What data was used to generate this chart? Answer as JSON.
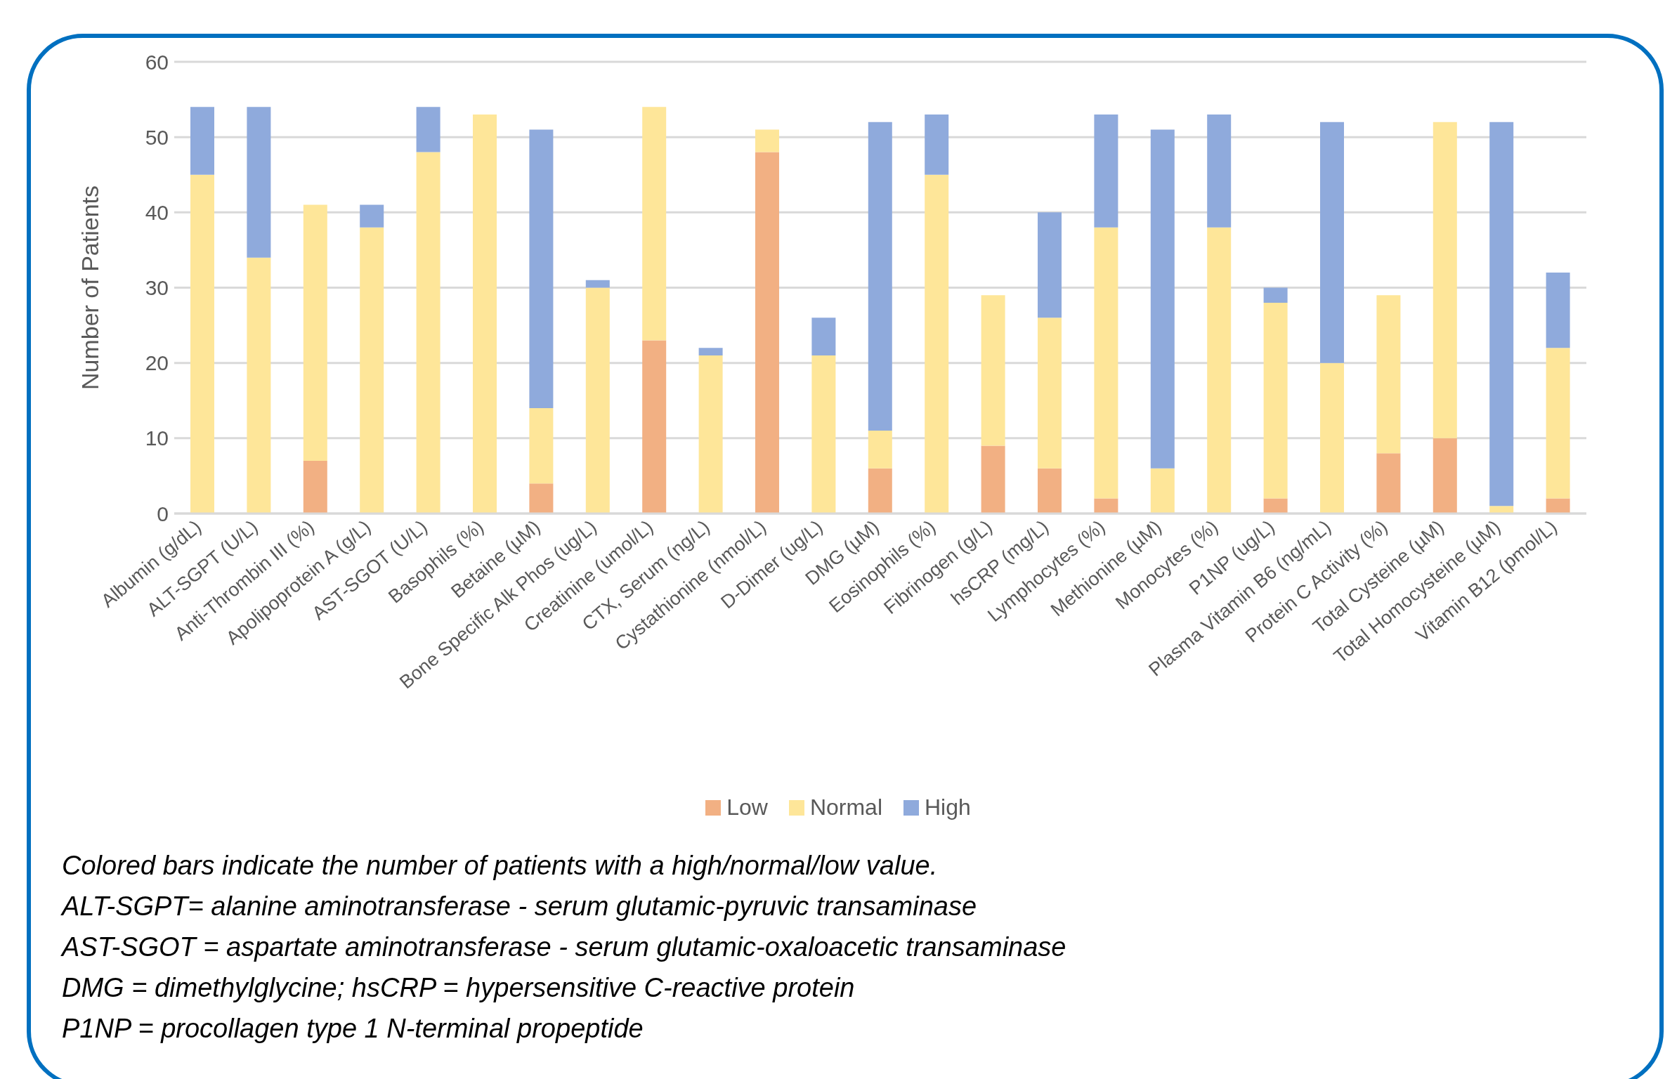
{
  "chart_data": {
    "type": "bar",
    "stacked": true,
    "ylabel": "Number of Patients",
    "ylim": [
      0,
      60
    ],
    "yticks": [
      0,
      10,
      20,
      30,
      40,
      50,
      60
    ],
    "grid": "y",
    "legend": "bottom",
    "categories": [
      "Albumin (g/dL)",
      "ALT-SGPT (U/L)",
      "Anti-Thrombin III (%)",
      "Apolipoprotein A (g/L)",
      "AST-SGOT (U/L)",
      "Basophils (%)",
      "Betaine (µM)",
      "Bone Specific Alk Phos (ug/L)",
      "Creatinine (umol/L)",
      "CTX, Serum (ng/L)",
      "Cystathionine (nmol/L)",
      "D-Dimer (ug/L)",
      "DMG (µM)",
      "Eosinophils (%)",
      "Fibrinogen (g/L)",
      "hsCRP (mg/L)",
      "Lymphocytes (%)",
      "Methionine (µM)",
      "Monocytes (%)",
      "P1NP (ug/L)",
      "Plasma Vitamin B6 (ng/mL)",
      "Protein C Activity (%)",
      "Total Cysteine (µM)",
      "Total Homocysteine (µM)",
      "Vitamin B12 (pmol/L)"
    ],
    "series": [
      {
        "name": "Low",
        "color": "#f2b083",
        "values": [
          0,
          0,
          7,
          0,
          0,
          0,
          4,
          0,
          23,
          0,
          48,
          0,
          6,
          0,
          9,
          6,
          2,
          0,
          0,
          2,
          0,
          8,
          10,
          0,
          2
        ]
      },
      {
        "name": "Normal",
        "color": "#fee699",
        "values": [
          45,
          34,
          34,
          38,
          48,
          53,
          10,
          30,
          31,
          21,
          3,
          21,
          5,
          45,
          20,
          20,
          36,
          6,
          38,
          26,
          20,
          21,
          42,
          1,
          20
        ]
      },
      {
        "name": "High",
        "color": "#8faadc",
        "values": [
          9,
          20,
          0,
          3,
          6,
          0,
          37,
          1,
          0,
          1,
          0,
          5,
          41,
          8,
          0,
          14,
          15,
          45,
          15,
          2,
          32,
          0,
          0,
          51,
          10
        ]
      }
    ],
    "annotations": [
      "Colored bars indicate the number of patients with a high/normal/low value.",
      "ALT-SGPT= alanine aminotransferase - serum glutamic-pyruvic transaminase",
      "AST-SGOT = aspartate aminotransferase - serum glutamic-oxaloacetic transaminase",
      "DMG = dimethylglycine; hsCRP = hypersensitive C-reactive protein",
      "P1NP = procollagen type 1 N-terminal propeptide"
    ]
  }
}
